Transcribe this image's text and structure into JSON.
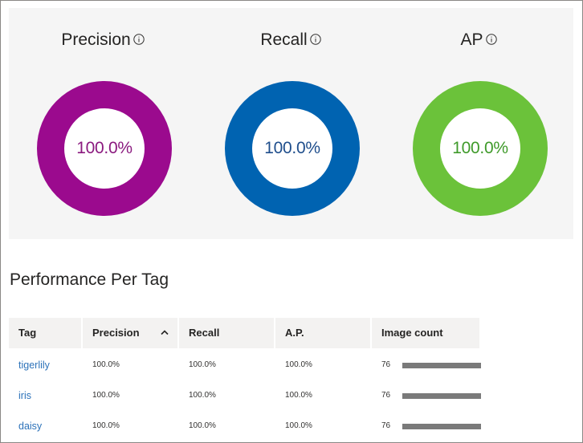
{
  "metrics": [
    {
      "label": "Precision",
      "value": "100.0%",
      "ring_color": "#9b0a8e",
      "text_color": "#8b1a7f"
    },
    {
      "label": "Recall",
      "value": "100.0%",
      "ring_color": "#0063b1",
      "text_color": "#1f4e8c"
    },
    {
      "label": "AP",
      "value": "100.0%",
      "ring_color": "#6bc23a",
      "text_color": "#3f9a2a"
    }
  ],
  "section_title": "Performance Per Tag",
  "table": {
    "columns": [
      "Tag",
      "Precision",
      "Recall",
      "A.P.",
      "Image count"
    ],
    "rows": [
      {
        "tag": "tigerlily",
        "precision": "100.0%",
        "recall": "100.0%",
        "ap": "100.0%",
        "count": "76",
        "count_fraction": 1.0
      },
      {
        "tag": "iris",
        "precision": "100.0%",
        "recall": "100.0%",
        "ap": "100.0%",
        "count": "76",
        "count_fraction": 1.0
      },
      {
        "tag": "daisy",
        "precision": "100.0%",
        "recall": "100.0%",
        "ap": "100.0%",
        "count": "76",
        "count_fraction": 1.0
      }
    ]
  }
}
